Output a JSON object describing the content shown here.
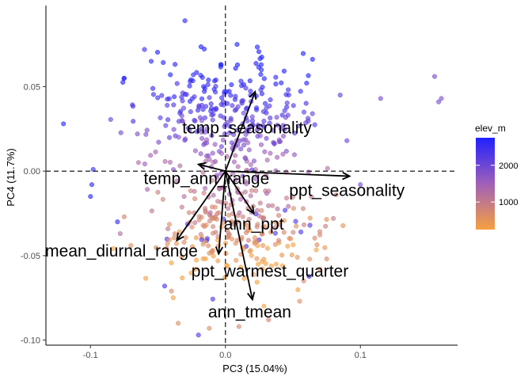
{
  "chart_data": {
    "type": "scatter",
    "subtype": "pca-biplot",
    "xlabel": "PC3 (15.04%)",
    "ylabel": "PC4 (11.7%)",
    "xlim": [
      -0.133,
      0.172
    ],
    "ylim": [
      -0.103,
      0.098
    ],
    "xticks": [
      {
        "value": -0.1,
        "label": "-0.1"
      },
      {
        "value": 0.0,
        "label": "0.0"
      },
      {
        "value": 0.1,
        "label": "0.1"
      }
    ],
    "yticks": [
      {
        "value": 0.05,
        "label": "0.05"
      },
      {
        "value": 0.0,
        "label": "0.00"
      },
      {
        "value": -0.05,
        "label": "-0.05"
      },
      {
        "value": -0.1,
        "label": "-0.10"
      }
    ],
    "reference_lines": {
      "x": 0,
      "y": 0,
      "style": "dashed"
    },
    "legend": {
      "title": "elev_m",
      "position": "right",
      "ticks": [
        {
          "value": 2000,
          "label": "2000"
        },
        {
          "value": 1000,
          "label": "1000"
        }
      ],
      "range": [
        250,
        2750
      ],
      "low_color": "#F5A041",
      "mid_color": "#A060B8",
      "high_color": "#2020FF"
    },
    "loadings": [
      {
        "name": "temp_seasonality",
        "x": 0.022,
        "y": 0.047
      },
      {
        "name": "temp_ann_range",
        "x": -0.02,
        "y": 0.004
      },
      {
        "name": "ppt_seasonality",
        "x": 0.092,
        "y": -0.003
      },
      {
        "name": "ann_ppt",
        "x": 0.021,
        "y": -0.025
      },
      {
        "name": "mean_diurnal_range",
        "x": -0.036,
        "y": -0.041
      },
      {
        "name": "ppt_warmest_quarter",
        "x": -0.005,
        "y": -0.049
      },
      {
        "name": "ann_tmean",
        "x": 0.02,
        "y": -0.076
      }
    ],
    "loading_labels": [
      {
        "name": "temp_seasonality",
        "x": 0.016,
        "y": 0.025
      },
      {
        "name": "temp_ann_range",
        "x": -0.014,
        "y": -0.005
      },
      {
        "name": "ppt_seasonality",
        "x": 0.09,
        "y": -0.012
      },
      {
        "name": "ann_ppt",
        "x": 0.021,
        "y": -0.032
      },
      {
        "name": "mean_diurnal_range",
        "x": -0.077,
        "y": -0.048
      },
      {
        "name": "ppt_warmest_quarter",
        "x": 0.033,
        "y": -0.06
      },
      {
        "name": "ann_tmean",
        "x": 0.018,
        "y": -0.084
      }
    ],
    "points": {
      "outliers": [
        {
          "x": -0.12,
          "y": 0.028,
          "elev": 2700
        },
        {
          "x": -0.03,
          "y": 0.089,
          "elev": 2650
        },
        {
          "x": 0.115,
          "y": 0.043,
          "elev": 1900
        },
        {
          "x": 0.155,
          "y": 0.056,
          "elev": 1900
        },
        {
          "x": 0.158,
          "y": 0.041,
          "elev": 1900
        },
        {
          "x": 0.16,
          "y": 0.043,
          "elev": 1850
        },
        {
          "x": -0.1,
          "y": -0.015,
          "elev": 2700
        },
        {
          "x": -0.099,
          "y": -0.008,
          "elev": 2600
        },
        {
          "x": -0.098,
          "y": 0.001,
          "elev": 2500
        },
        {
          "x": -0.08,
          "y": -0.03,
          "elev": 2600
        },
        {
          "x": -0.078,
          "y": -0.037,
          "elev": 1200
        },
        {
          "x": -0.075,
          "y": -0.027,
          "elev": 800
        },
        {
          "x": -0.07,
          "y": -0.044,
          "elev": 600
        },
        {
          "x": -0.045,
          "y": -0.068,
          "elev": 2400
        },
        {
          "x": -0.04,
          "y": -0.071,
          "elev": 700
        },
        {
          "x": -0.035,
          "y": -0.09,
          "elev": 600
        },
        {
          "x": -0.02,
          "y": -0.097,
          "elev": 2300
        },
        {
          "x": -0.012,
          "y": -0.093,
          "elev": 650
        },
        {
          "x": 0.01,
          "y": -0.092,
          "elev": 700
        },
        {
          "x": 0.032,
          "y": -0.088,
          "elev": 800
        },
        {
          "x": 0.055,
          "y": -0.077,
          "elev": 600
        },
        {
          "x": 0.058,
          "y": -0.065,
          "elev": 700
        },
        {
          "x": 0.075,
          "y": -0.052,
          "elev": 700
        },
        {
          "x": 0.07,
          "y": -0.058,
          "elev": 650
        },
        {
          "x": 0.08,
          "y": -0.028,
          "elev": 1000
        },
        {
          "x": 0.1,
          "y": -0.008,
          "elev": 1900
        },
        {
          "x": 0.09,
          "y": 0.018,
          "elev": 2000
        },
        {
          "x": 0.085,
          "y": 0.045,
          "elev": 2100
        },
        {
          "x": -0.075,
          "y": 0.055,
          "elev": 2700
        },
        {
          "x": -0.06,
          "y": 0.072,
          "elev": 2500
        },
        {
          "x": -0.055,
          "y": 0.065,
          "elev": 2600
        }
      ],
      "cluster_count": 560,
      "cluster_seed": 2024
    }
  }
}
